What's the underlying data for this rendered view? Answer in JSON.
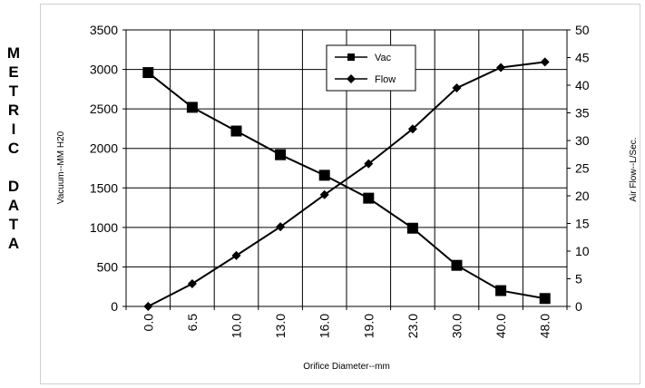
{
  "side_title": [
    "M",
    "E",
    "T",
    "R",
    "I",
    "C",
    "",
    "D",
    "A",
    "T",
    "A"
  ],
  "chart_data": {
    "type": "line",
    "title": "",
    "xlabel": "Orifice Diameter--mm",
    "ylabel": "Vacuum--MM H20",
    "y2label": "Air Flow--L/Sec.",
    "categories": [
      "0.0",
      "6.5",
      "10.0",
      "13.0",
      "16.0",
      "19.0",
      "23.0",
      "30.0",
      "40.0",
      "48.0"
    ],
    "ylim": [
      0,
      3500
    ],
    "yticks": [
      0,
      500,
      1000,
      1500,
      2000,
      2500,
      3000,
      3500
    ],
    "y2lim": [
      0,
      50
    ],
    "y2ticks": [
      0,
      5,
      10,
      15,
      20,
      25,
      30,
      35,
      40,
      45,
      50
    ],
    "grid": true,
    "legend_position": "top-center",
    "series": [
      {
        "name": "Vac",
        "axis": "left",
        "marker": "square",
        "color": "#000000",
        "values": [
          2960,
          2520,
          2220,
          1920,
          1660,
          1370,
          990,
          520,
          200,
          100
        ]
      },
      {
        "name": "Flow",
        "axis": "right",
        "marker": "diamond",
        "color": "#000000",
        "values": [
          0,
          4.1,
          9.2,
          14.4,
          20.2,
          25.8,
          32.1,
          39.5,
          43.2,
          44.2
        ]
      }
    ]
  }
}
